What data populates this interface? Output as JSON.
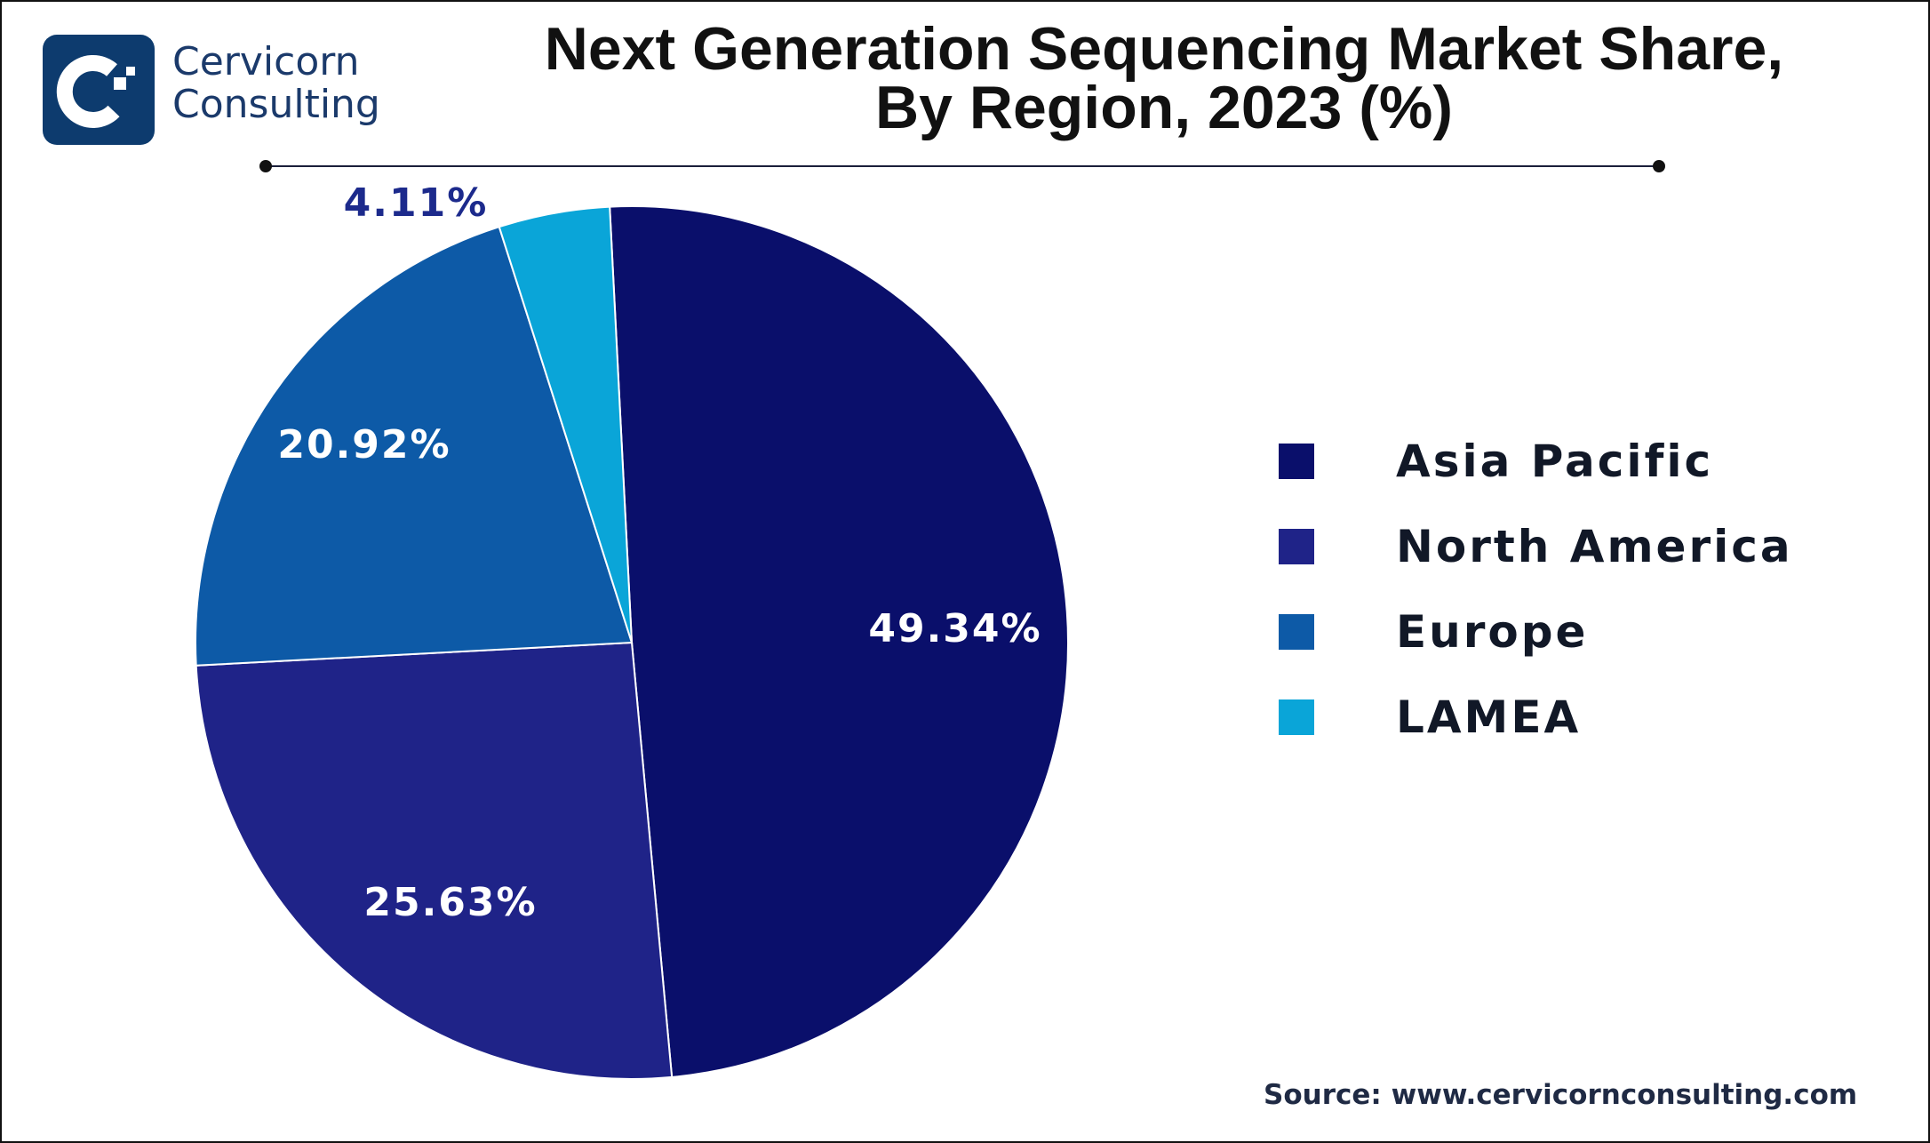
{
  "logo": {
    "line1": "Cervicorn",
    "line2": "Consulting"
  },
  "chart_data": {
    "type": "pie",
    "title": "Next Generation Sequencing Market Share, By Region, 2023 (%)",
    "title_lines": [
      "Next Generation Sequencing Market Share,",
      "By Region, 2023 (%)"
    ],
    "categories": [
      "Asia Pacific",
      "North America",
      "Europe",
      "LAMEA"
    ],
    "values": [
      49.34,
      25.63,
      20.92,
      4.11
    ],
    "labels": [
      "49.34%",
      "25.63%",
      "20.92%",
      "4.11%"
    ],
    "colors": [
      "#0a0f6b",
      "#1f2388",
      "#0d5aa7",
      "#0aa5d8"
    ],
    "legend_placement": "right"
  },
  "source": "Source: www.cervicornconsulting.com"
}
